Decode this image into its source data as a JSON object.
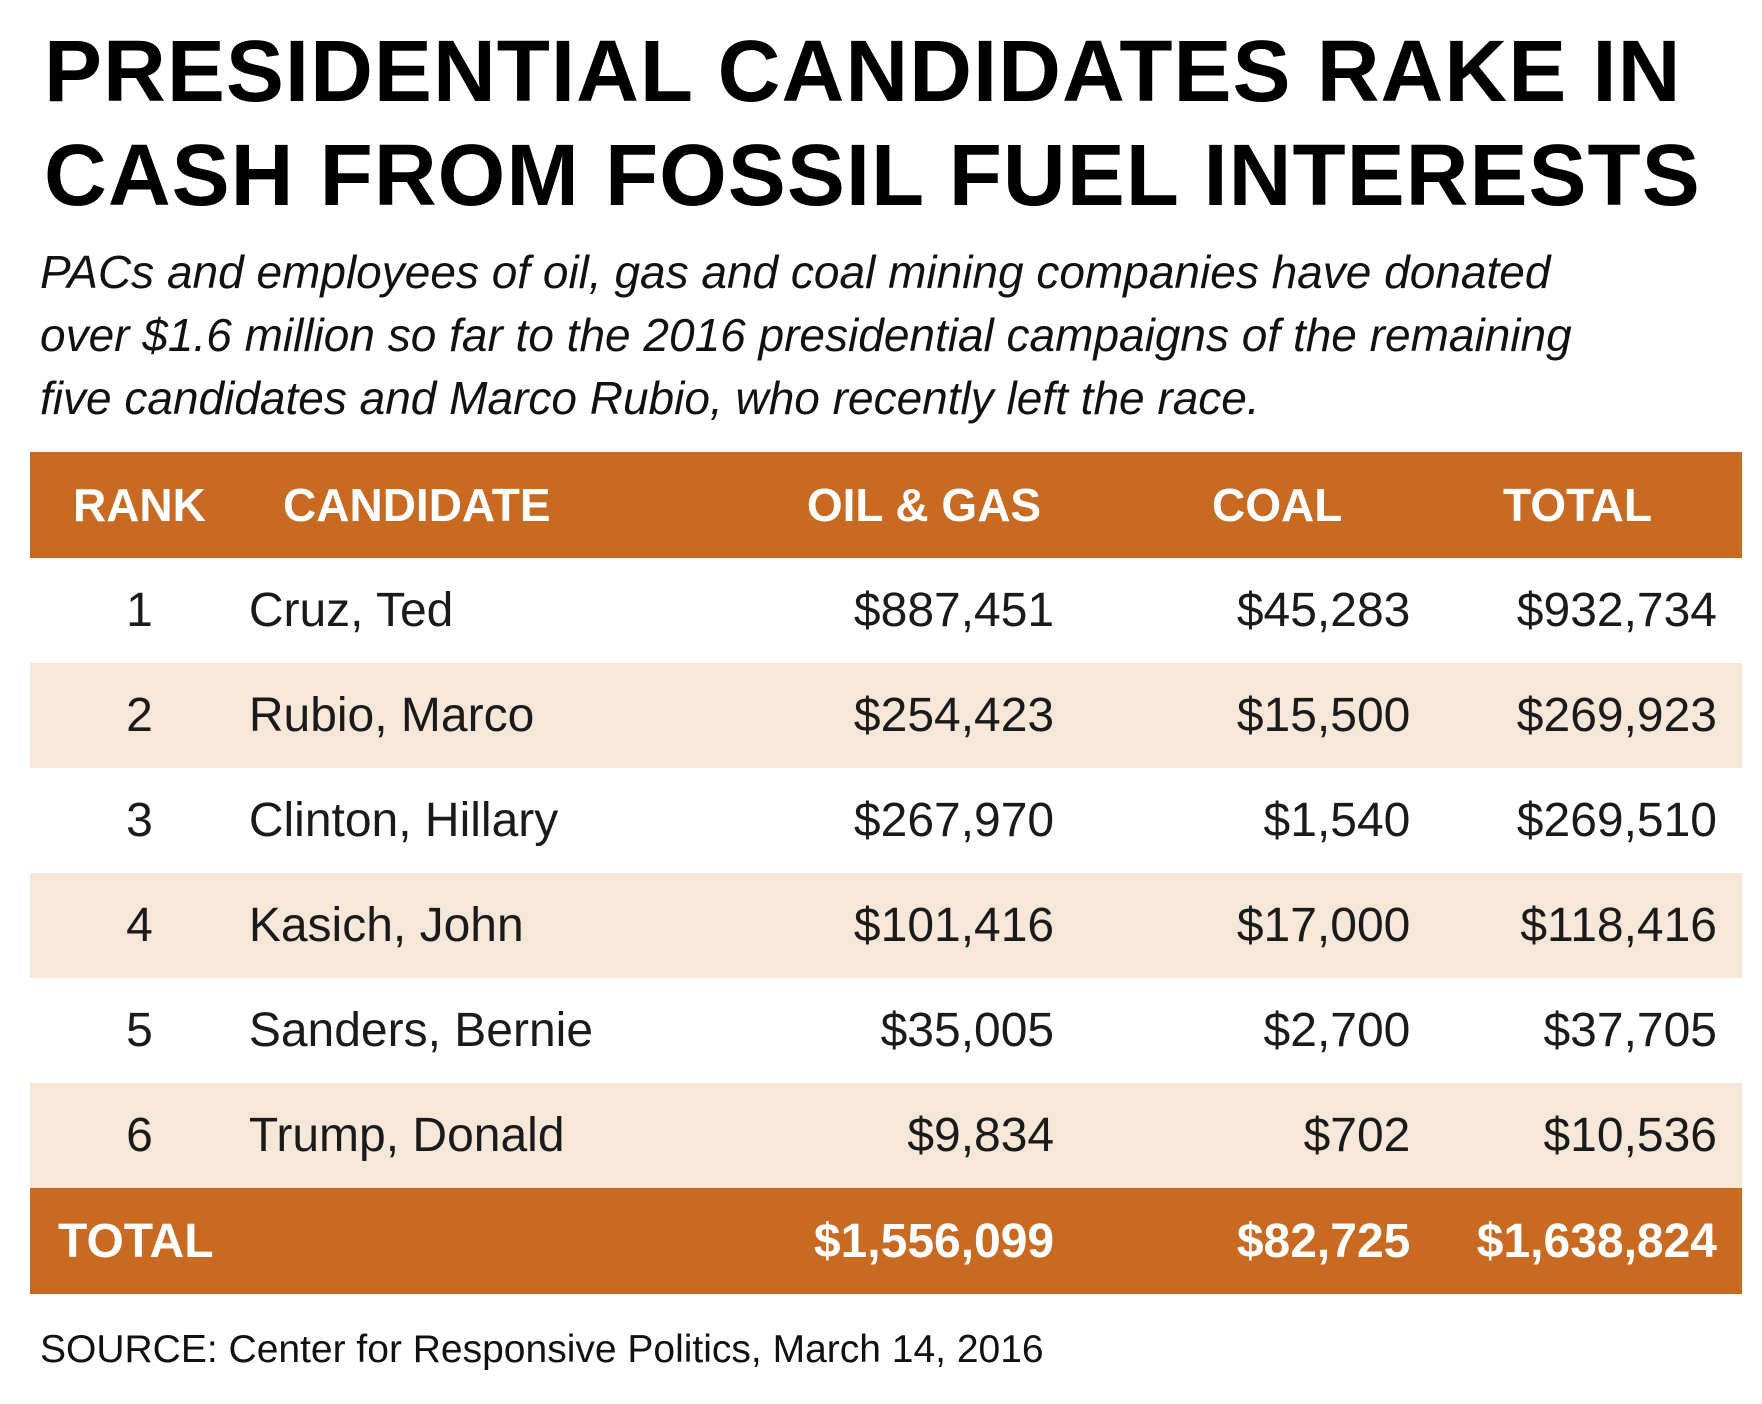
{
  "title_lines": [
    "PRESIDENTIAL CANDIDATES RAKE IN",
    "CASH FROM FOSSIL FUEL INTERESTS"
  ],
  "subtitle_lines": [
    "PACs and employees of oil, gas and coal mining companies have donated",
    "over $1.6 million so far to the 2016 presidential campaigns of the remaining",
    "five candidates and Marco Rubio, who recently left the race."
  ],
  "colors": {
    "header_band": "#c96a22",
    "shaded_row": "#f6e7d9",
    "header_text": "#ffffff"
  },
  "chart_data": {
    "type": "table",
    "columns": [
      "RANK",
      "CANDIDATE",
      "OIL & GAS",
      "COAL",
      "TOTAL"
    ],
    "rows": [
      {
        "rank": "1",
        "candidate": "Cruz, Ted",
        "oil_gas": "$887,451",
        "coal": "$45,283",
        "total": "$932,734"
      },
      {
        "rank": "2",
        "candidate": "Rubio, Marco",
        "oil_gas": "$254,423",
        "coal": "$15,500",
        "total": "$269,923"
      },
      {
        "rank": "3",
        "candidate": "Clinton, Hillary",
        "oil_gas": "$267,970",
        "coal": "$1,540",
        "total": "$269,510"
      },
      {
        "rank": "4",
        "candidate": "Kasich, John",
        "oil_gas": "$101,416",
        "coal": "$17,000",
        "total": "$118,416"
      },
      {
        "rank": "5",
        "candidate": "Sanders, Bernie",
        "oil_gas": "$35,005",
        "coal": "$2,700",
        "total": "$37,705"
      },
      {
        "rank": "6",
        "candidate": "Trump, Donald",
        "oil_gas": "$9,834",
        "coal": "$702",
        "total": "$10,536"
      }
    ],
    "totals": {
      "label": "TOTAL",
      "oil_gas": "$1,556,099",
      "coal": "$82,725",
      "total": "$1,638,824"
    }
  },
  "source": "SOURCE: Center for Responsive Politics, March 14, 2016"
}
